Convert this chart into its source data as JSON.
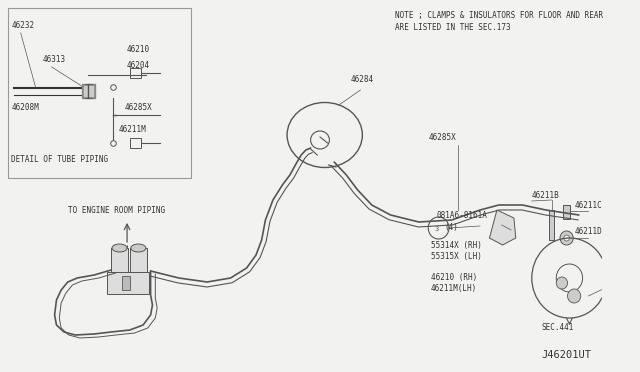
{
  "bg_color": "#f2f2f0",
  "lc": "#555555",
  "lc_dark": "#333333",
  "fs": 5.5,
  "note1": "NOTE ; CLAMPS & INSULATORS FOR FLOOR AND REAR",
  "note2": "ARE LISTED IN THE SEC.173",
  "title": "J46201UT"
}
